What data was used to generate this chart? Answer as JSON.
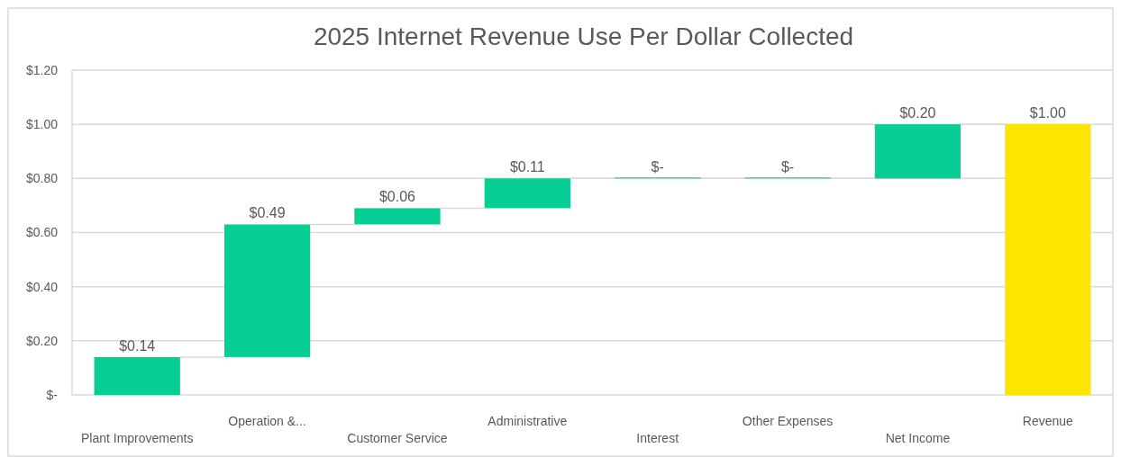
{
  "chart_data": {
    "type": "bar",
    "title": "2025 Internet Revenue Use Per Dollar Collected",
    "categories": [
      "Plant Improvements",
      "Operation &...",
      "Customer Service",
      "Administrative",
      "Interest",
      "Other Expenses",
      "Net Income",
      "Revenue"
    ],
    "values": [
      0.14,
      0.49,
      0.06,
      0.11,
      0,
      0,
      0.2,
      1.0
    ],
    "base": [
      0,
      0.14,
      0.63,
      0.69,
      0.8,
      0.8,
      0.8,
      0
    ],
    "colors": [
      "#06ce94",
      "#06ce94",
      "#06ce94",
      "#06ce94",
      "#06ce94",
      "#06ce94",
      "#06ce94",
      "#fce500"
    ],
    "value_labels": [
      "$0.14",
      "$0.49",
      "$0.06",
      "$0.11",
      "$-",
      "$-",
      "$0.20",
      "$1.00"
    ],
    "ylim": [
      0,
      1.2
    ],
    "yticks": [
      {
        "value": 0,
        "label": "$-"
      },
      {
        "value": 0.2,
        "label": "$0.20"
      },
      {
        "value": 0.4,
        "label": "$0.40"
      },
      {
        "value": 0.6,
        "label": "$0.60"
      },
      {
        "value": 0.8,
        "label": "$0.80"
      },
      {
        "value": 1.0,
        "label": "$1.00"
      },
      {
        "value": 1.2,
        "label": "$1.20"
      }
    ],
    "grid": "y"
  }
}
